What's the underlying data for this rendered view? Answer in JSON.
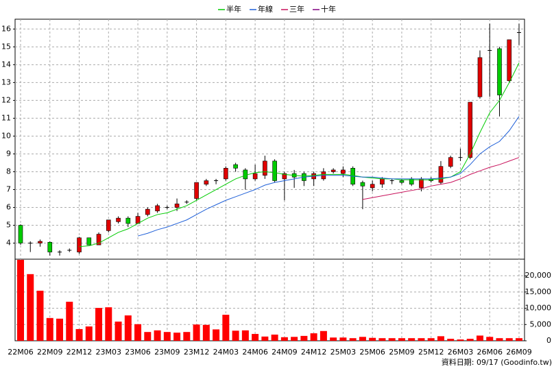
{
  "chart_data": {
    "type": "candlestick",
    "categories": [
      "22M06",
      null,
      null,
      "22M09",
      null,
      null,
      "22M12",
      null,
      null,
      "23M03",
      null,
      null,
      "23M06",
      null,
      null,
      "23M09",
      null,
      null,
      "23M12",
      null,
      null,
      "24M03",
      null,
      null,
      "24M06",
      null,
      null,
      "24M09",
      null,
      null,
      "24M12",
      null,
      null,
      "25M03",
      null,
      null,
      "25M06",
      null,
      null,
      "25M09",
      null,
      null,
      "25M12",
      null,
      null,
      "26M03",
      null,
      null,
      "26M06",
      null,
      null,
      "26M09"
    ],
    "open": [
      5.0,
      4.0,
      4.0,
      4.05,
      3.5,
      3.6,
      3.5,
      4.3,
      3.9,
      4.7,
      5.2,
      5.4,
      5.1,
      5.6,
      5.8,
      6.0,
      6.0,
      6.3,
      6.5,
      7.3,
      7.5,
      7.6,
      8.4,
      8.1,
      7.6,
      7.8,
      8.6,
      7.6,
      7.9,
      7.9,
      7.6,
      7.6,
      8.0,
      7.9,
      8.2,
      7.4,
      7.1,
      7.3,
      7.5,
      7.5,
      7.6,
      7.1,
      7.6,
      7.4,
      8.3,
      8.8,
      8.8,
      12.2,
      14.8,
      14.9,
      13.1,
      15.8
    ],
    "high": [
      5.05,
      4.1,
      4.2,
      4.1,
      3.6,
      3.7,
      4.35,
      4.3,
      4.6,
      5.3,
      5.5,
      5.5,
      5.7,
      6.0,
      6.2,
      6.1,
      6.5,
      6.4,
      7.4,
      7.6,
      7.6,
      8.3,
      8.5,
      8.2,
      8.4,
      8.9,
      8.7,
      8.0,
      8.1,
      8.0,
      8.0,
      8.2,
      8.2,
      8.3,
      8.3,
      7.5,
      7.5,
      7.7,
      7.6,
      7.6,
      7.7,
      7.7,
      7.7,
      8.6,
      8.9,
      9.3,
      11.9,
      14.8,
      16.3,
      15.0,
      15.4,
      16.3
    ],
    "low": [
      3.9,
      3.5,
      3.8,
      3.3,
      3.3,
      3.5,
      3.4,
      3.9,
      3.9,
      4.6,
      5.1,
      4.9,
      5.1,
      5.5,
      5.7,
      5.9,
      5.8,
      6.2,
      6.4,
      7.2,
      7.3,
      7.5,
      8.0,
      7.0,
      7.5,
      7.6,
      7.4,
      6.4,
      7.1,
      7.2,
      7.2,
      7.5,
      7.9,
      7.7,
      7.2,
      5.9,
      6.9,
      7.1,
      7.3,
      7.3,
      7.2,
      6.9,
      7.4,
      7.3,
      8.2,
      8.6,
      8.7,
      12.1,
      12.2,
      11.1,
      13.0,
      15.1
    ],
    "close": [
      4.0,
      4.0,
      4.1,
      3.5,
      3.5,
      3.6,
      4.3,
      3.9,
      4.5,
      5.3,
      5.4,
      5.1,
      5.5,
      5.9,
      6.1,
      6.0,
      6.2,
      6.3,
      7.4,
      7.5,
      7.5,
      8.2,
      8.2,
      7.6,
      7.9,
      8.6,
      7.5,
      7.9,
      7.7,
      7.5,
      7.9,
      8.0,
      8.1,
      8.1,
      7.3,
      7.2,
      7.3,
      7.6,
      7.5,
      7.4,
      7.3,
      7.6,
      7.5,
      8.3,
      8.8,
      8.8,
      11.9,
      14.4,
      14.8,
      12.3,
      15.4,
      15.8
    ],
    "up_color": "#e00000",
    "down_color": "#00cc00",
    "series": [
      {
        "name": "半年",
        "color": "#00cc00",
        "values": [
          null,
          null,
          null,
          null,
          null,
          null,
          3.8,
          3.85,
          4.0,
          4.3,
          4.6,
          4.8,
          5.1,
          5.4,
          5.6,
          5.7,
          5.9,
          6.1,
          6.4,
          6.7,
          7.0,
          7.3,
          7.6,
          7.8,
          7.95,
          8.0,
          7.95,
          7.85,
          7.8,
          7.75,
          7.8,
          7.85,
          7.85,
          7.85,
          7.8,
          7.7,
          7.65,
          7.6,
          7.6,
          7.55,
          7.55,
          7.55,
          7.55,
          7.6,
          7.7,
          8.0,
          9.0,
          10.2,
          11.3,
          12.0,
          13.0,
          14.1
        ]
      },
      {
        "name": "年線",
        "color": "#1e5fd8",
        "values": [
          null,
          null,
          null,
          null,
          null,
          null,
          null,
          null,
          null,
          null,
          null,
          null,
          4.4,
          4.55,
          4.75,
          4.9,
          5.1,
          5.3,
          5.6,
          5.9,
          6.15,
          6.4,
          6.6,
          6.8,
          7.0,
          7.25,
          7.4,
          7.5,
          7.6,
          7.7,
          7.75,
          7.8,
          7.8,
          7.8,
          7.75,
          7.7,
          7.7,
          7.65,
          7.6,
          7.6,
          7.6,
          7.6,
          7.6,
          7.65,
          7.7,
          7.9,
          8.4,
          9.0,
          9.4,
          9.7,
          10.3,
          11.1
        ]
      },
      {
        "name": "三年",
        "color": "#c8105a",
        "values": [
          null,
          null,
          null,
          null,
          null,
          null,
          null,
          null,
          null,
          null,
          null,
          null,
          null,
          null,
          null,
          null,
          null,
          null,
          null,
          null,
          null,
          null,
          null,
          null,
          null,
          null,
          null,
          null,
          null,
          null,
          null,
          null,
          null,
          null,
          null,
          6.45,
          6.55,
          6.65,
          6.75,
          6.85,
          6.95,
          7.05,
          7.2,
          7.3,
          7.4,
          7.6,
          7.85,
          8.05,
          8.25,
          8.4,
          8.6,
          8.8
        ]
      },
      {
        "name": "十年",
        "color": "#800080",
        "values": [
          null,
          null,
          null,
          null,
          null,
          null,
          null,
          null,
          null,
          null,
          null,
          null,
          null,
          null,
          null,
          null,
          null,
          null,
          null,
          null,
          null,
          null,
          null,
          null,
          null,
          null,
          null,
          null,
          null,
          null,
          null,
          null,
          null,
          null,
          null,
          null,
          null,
          null,
          null,
          null,
          null,
          null,
          null,
          null,
          null,
          null,
          null,
          null,
          null,
          null,
          null,
          null
        ]
      }
    ],
    "ylim": [
      3.1,
      16.55
    ],
    "yticks": [
      4,
      5,
      6,
      7,
      8,
      9,
      10,
      11,
      12,
      13,
      14,
      15,
      16
    ],
    "volume": [
      24900,
      20500,
      15400,
      7000,
      6800,
      12000,
      3600,
      4400,
      10100,
      10300,
      5900,
      7800,
      5100,
      2700,
      3200,
      2700,
      2500,
      2700,
      5000,
      4900,
      3500,
      8000,
      3100,
      3200,
      2100,
      1300,
      1900,
      1100,
      1200,
      1500,
      2300,
      3000,
      1000,
      1000,
      800,
      1200,
      900,
      800,
      800,
      800,
      800,
      800,
      800,
      1400,
      600,
      400,
      600,
      1600,
      1200,
      800,
      800,
      800
    ],
    "volume_color": "#ff0000",
    "volume_ylim": [
      0,
      25100
    ],
    "volume_yticks": [
      0,
      {
        "value": 5000,
        "label": "5,000"
      },
      {
        "value": 10000,
        "label": "10,000"
      },
      {
        "value": 15000,
        "label": "15,000"
      },
      {
        "value": 20000,
        "label": "20,000"
      }
    ],
    "grid": true,
    "source": "資料日期: 09/17 (Goodinfo.tw)"
  }
}
